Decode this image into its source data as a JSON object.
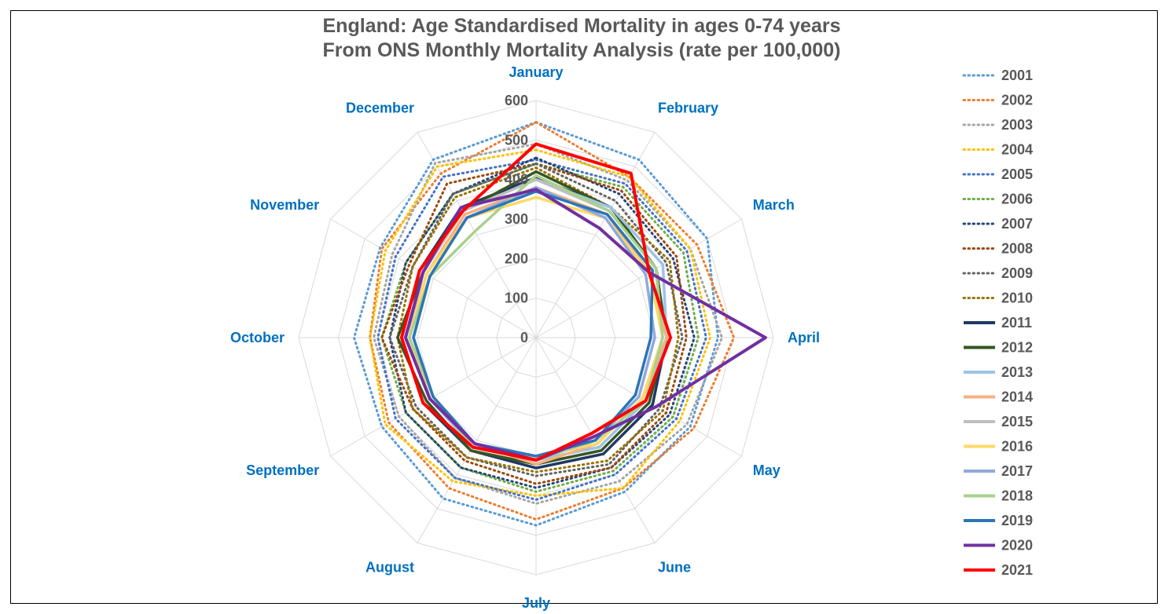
{
  "chart_data": {
    "type": "radar",
    "title": "England: Age Standardised Mortality in ages 0-74 years",
    "subtitle": "From ONS Monthly Mortality Analysis (rate per 100,000)",
    "categories": [
      "January",
      "February",
      "March",
      "April",
      "May",
      "June",
      "July",
      "August",
      "September",
      "October",
      "November",
      "December"
    ],
    "rlim": [
      0,
      600
    ],
    "ticks": [
      "0",
      "100",
      "200",
      "300",
      "400",
      "500",
      "600"
    ],
    "grid": true,
    "legend": "right",
    "series": [
      {
        "name": "2001",
        "color": "#5b9bd5",
        "style": "dotted",
        "values": [
          545,
          520,
          500,
          460,
          450,
          450,
          475,
          470,
          450,
          460,
          455,
          520
        ]
      },
      {
        "name": "2002",
        "color": "#ed7d31",
        "style": "dotted",
        "values": [
          545,
          470,
          470,
          500,
          460,
          440,
          460,
          440,
          430,
          420,
          450,
          480
        ]
      },
      {
        "name": "2003",
        "color": "#a5a5a5",
        "style": "dotted",
        "values": [
          490,
          460,
          450,
          470,
          440,
          420,
          420,
          410,
          400,
          410,
          420,
          510
        ]
      },
      {
        "name": "2004",
        "color": "#ffc000",
        "style": "dotted",
        "values": [
          475,
          470,
          450,
          440,
          420,
          440,
          400,
          420,
          440,
          420,
          440,
          500
        ]
      },
      {
        "name": "2005",
        "color": "#4472c4",
        "style": "dotted",
        "values": [
          450,
          450,
          440,
          430,
          410,
          400,
          410,
          410,
          410,
          400,
          410,
          470
        ]
      },
      {
        "name": "2006",
        "color": "#70ad47",
        "style": "dotted",
        "values": [
          440,
          440,
          430,
          410,
          400,
          390,
          390,
          380,
          380,
          390,
          380,
          420
        ]
      },
      {
        "name": "2007",
        "color": "#264478",
        "style": "dotted",
        "values": [
          455,
          420,
          400,
          400,
          390,
          380,
          380,
          380,
          380,
          370,
          380,
          420
        ]
      },
      {
        "name": "2008",
        "color": "#9e480e",
        "style": "dotted",
        "values": [
          440,
          430,
          410,
          380,
          380,
          380,
          370,
          360,
          360,
          390,
          370,
          450
        ]
      },
      {
        "name": "2009",
        "color": "#636363",
        "style": "dotted",
        "values": [
          440,
          400,
          380,
          370,
          360,
          370,
          350,
          350,
          350,
          370,
          360,
          420
        ]
      },
      {
        "name": "2010",
        "color": "#997300",
        "style": "dotted",
        "values": [
          430,
          380,
          390,
          360,
          370,
          360,
          340,
          350,
          360,
          350,
          360,
          410
        ]
      },
      {
        "name": "2011",
        "color": "#203864",
        "style": "solid",
        "values": [
          405,
          380,
          350,
          330,
          340,
          340,
          330,
          330,
          330,
          340,
          340,
          380
        ]
      },
      {
        "name": "2012",
        "color": "#375623",
        "style": "solid",
        "values": [
          420,
          380,
          350,
          330,
          330,
          330,
          320,
          330,
          320,
          350,
          330,
          370
        ]
      },
      {
        "name": "2013",
        "color": "#9dc3e6",
        "style": "solid",
        "values": [
          400,
          380,
          370,
          330,
          320,
          320,
          310,
          320,
          310,
          320,
          330,
          370
        ]
      },
      {
        "name": "2014",
        "color": "#f4b183",
        "style": "solid",
        "values": [
          380,
          360,
          330,
          330,
          310,
          310,
          320,
          310,
          310,
          320,
          320,
          360
        ]
      },
      {
        "name": "2015",
        "color": "#bfbfbf",
        "style": "solid",
        "values": [
          400,
          370,
          350,
          320,
          310,
          310,
          300,
          320,
          300,
          320,
          330,
          370
        ]
      },
      {
        "name": "2016",
        "color": "#ffd966",
        "style": "solid",
        "values": [
          355,
          350,
          330,
          320,
          310,
          310,
          300,
          310,
          310,
          320,
          320,
          350
        ]
      },
      {
        "name": "2017",
        "color": "#8faadc",
        "style": "solid",
        "values": [
          380,
          350,
          320,
          300,
          300,
          300,
          300,
          310,
          300,
          310,
          310,
          350
        ]
      },
      {
        "name": "2018",
        "color": "#a9d18e",
        "style": "solid",
        "values": [
          410,
          370,
          350,
          320,
          320,
          300,
          310,
          320,
          300,
          320,
          310,
          310
        ]
      },
      {
        "name": "2019",
        "color": "#2e75b6",
        "style": "solid",
        "values": [
          370,
          360,
          340,
          290,
          290,
          300,
          300,
          310,
          300,
          310,
          310,
          350
        ]
      },
      {
        "name": "2020",
        "color": "#7030a0",
        "style": "solid",
        "values": [
          375,
          320,
          330,
          580,
          350,
          290,
          310,
          310,
          310,
          330,
          330,
          380
        ]
      },
      {
        "name": "2021",
        "color": "#ff0000",
        "style": "solid",
        "values": [
          490,
          480,
          330,
          340,
          320,
          280,
          310,
          320,
          330,
          340,
          340,
          370
        ]
      }
    ]
  }
}
